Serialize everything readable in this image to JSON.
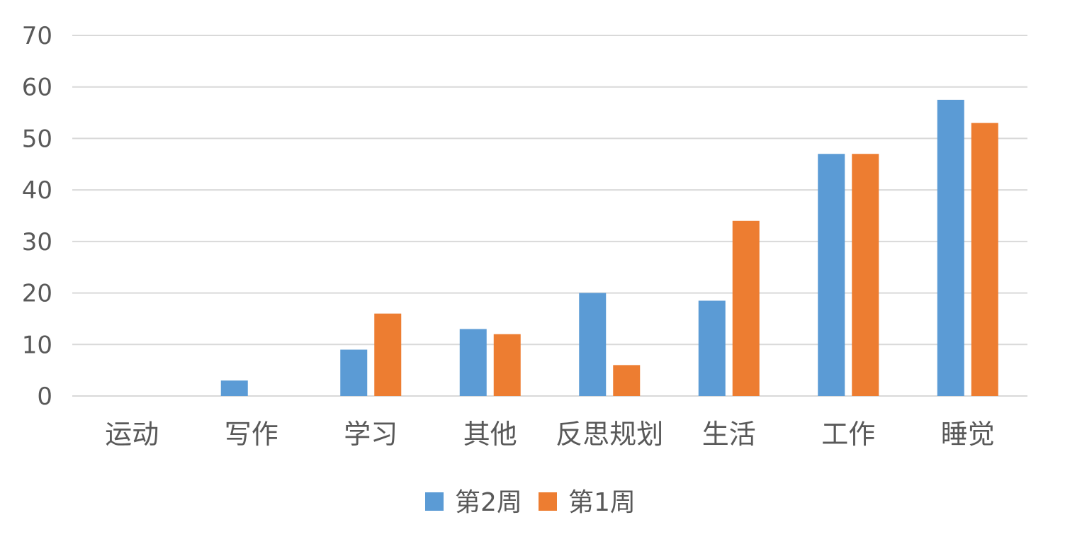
{
  "chart_data": {
    "type": "bar",
    "title": "",
    "xlabel": "",
    "ylabel": "",
    "categories": [
      "运动",
      "写作",
      "学习",
      "其他",
      "反思规划",
      "生活",
      "工作",
      "睡觉"
    ],
    "series": [
      {
        "name": "第2周",
        "color": "#5b9bd5",
        "values": [
          0,
          3,
          9,
          13,
          20,
          18.5,
          47,
          57.5
        ]
      },
      {
        "name": "第1周",
        "color": "#ed7d31",
        "values": [
          0,
          0,
          16,
          12,
          6,
          34,
          47,
          53
        ]
      }
    ],
    "ylim": [
      0,
      70
    ],
    "yticks": [
      0,
      10,
      20,
      30,
      40,
      50,
      60,
      70
    ],
    "grid": true,
    "legend_position": "bottom"
  }
}
